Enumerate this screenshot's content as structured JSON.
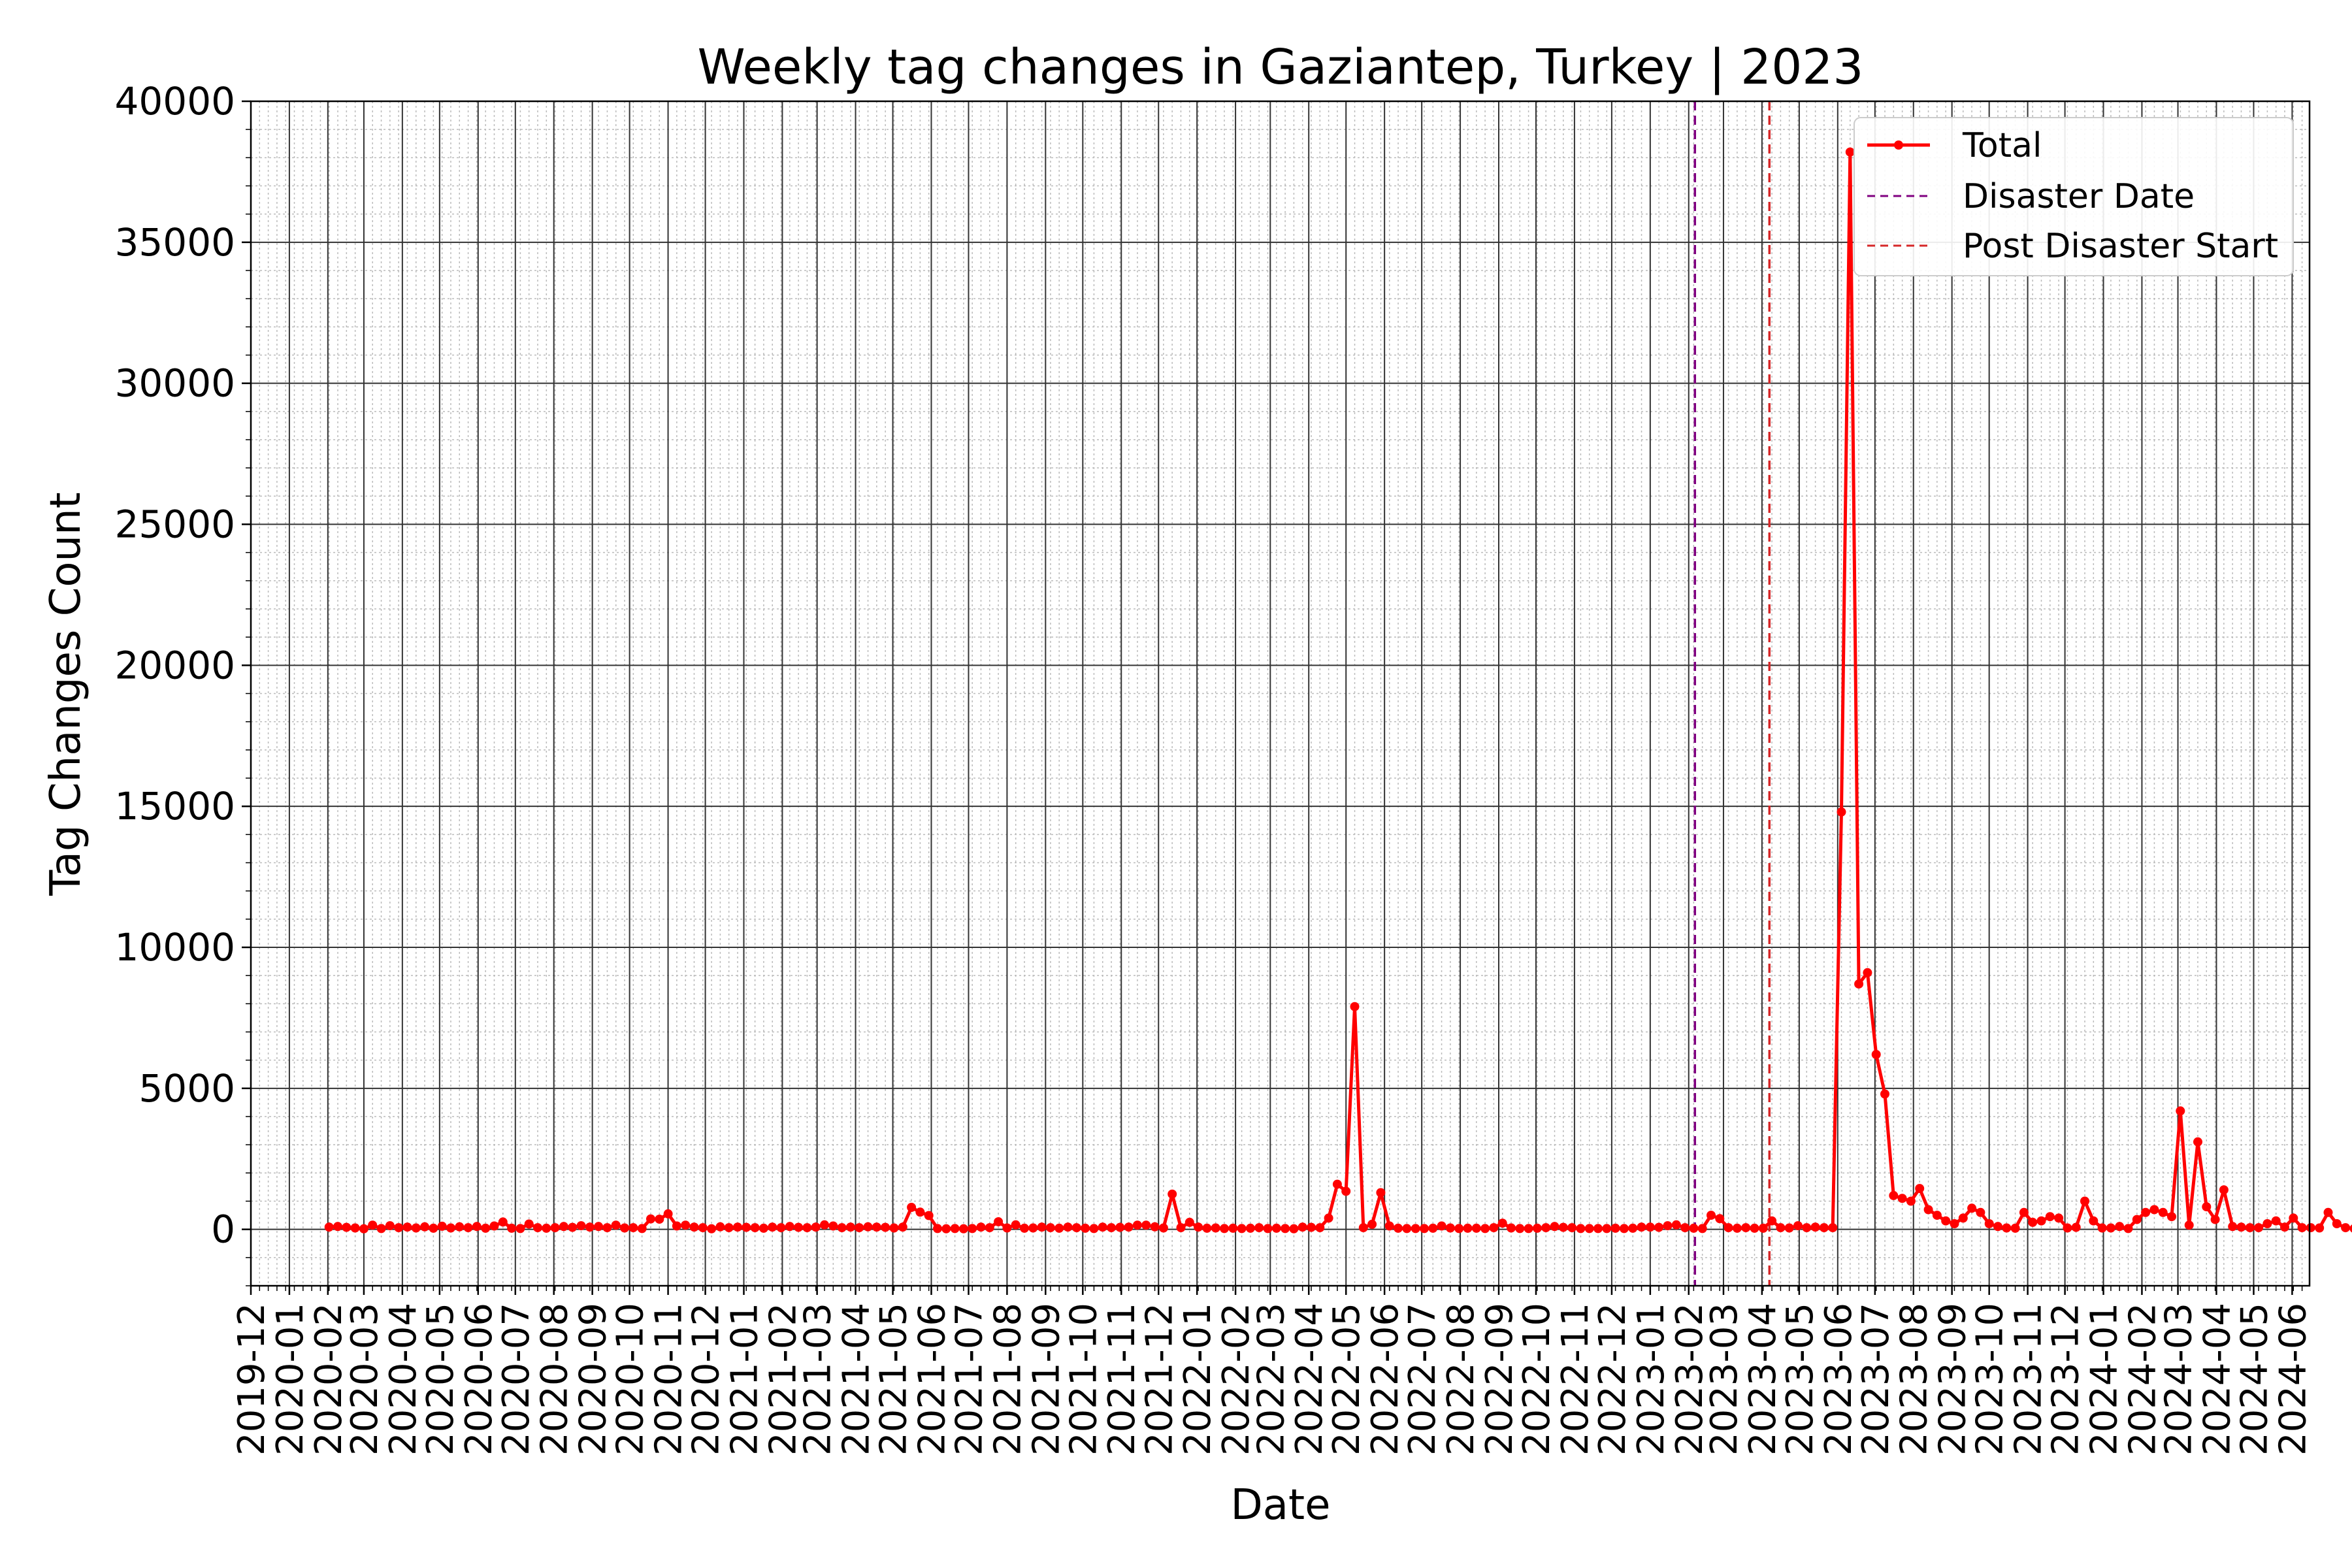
{
  "chart_data": {
    "type": "line",
    "title": "Weekly tag changes in Gaziantep, Turkey | 2023",
    "xlabel": "Date",
    "ylabel": "Tag Changes Count",
    "ylim": [
      -2000,
      40000
    ],
    "yticks": [
      0,
      5000,
      10000,
      15000,
      20000,
      25000,
      30000,
      35000,
      40000
    ],
    "xlim": [
      "2019-12-01",
      "2024-06-15"
    ],
    "xtick_labels": [
      "2019-12",
      "2020-01",
      "2020-02",
      "2020-03",
      "2020-04",
      "2020-05",
      "2020-06",
      "2020-07",
      "2020-08",
      "2020-09",
      "2020-10",
      "2020-11",
      "2020-12",
      "2021-01",
      "2021-02",
      "2021-03",
      "2021-04",
      "2021-05",
      "2021-06",
      "2021-07",
      "2021-08",
      "2021-09",
      "2021-10",
      "2021-11",
      "2021-12",
      "2022-01",
      "2022-02",
      "2022-03",
      "2022-04",
      "2022-05",
      "2022-06",
      "2022-07",
      "2022-08",
      "2022-09",
      "2022-10",
      "2022-11",
      "2022-12",
      "2023-01",
      "2023-02",
      "2023-03",
      "2023-04",
      "2023-05",
      "2023-06",
      "2023-07",
      "2023-08",
      "2023-09",
      "2023-10",
      "2023-11",
      "2023-12",
      "2024-01",
      "2024-02",
      "2024-03",
      "2024-04",
      "2024-05",
      "2024-06"
    ],
    "grid": true,
    "legend": "top-right",
    "series": [
      {
        "name": "Total",
        "color": "#ff0000",
        "start_date": "2020-02-02",
        "interval_days": 7,
        "values": [
          80,
          100,
          70,
          50,
          20,
          150,
          30,
          130,
          60,
          80,
          50,
          90,
          40,
          110,
          50,
          90,
          60,
          100,
          40,
          120,
          260,
          40,
          30,
          190,
          60,
          40,
          60,
          100,
          70,
          130,
          80,
          100,
          60,
          150,
          50,
          60,
          30,
          370,
          360,
          550,
          120,
          150,
          80,
          60,
          20,
          90,
          60,
          80,
          70,
          60,
          40,
          80,
          60,
          100,
          70,
          60,
          80,
          160,
          120,
          60,
          80,
          60,
          90,
          80,
          70,
          50,
          80,
          780,
          610,
          490,
          30,
          20,
          30,
          20,
          30,
          80,
          60,
          270,
          50,
          160,
          40,
          50,
          80,
          60,
          40,
          80,
          60,
          40,
          30,
          80,
          60,
          70,
          80,
          150,
          150,
          90,
          50,
          1250,
          60,
          250,
          80,
          40,
          50,
          30,
          40,
          30,
          40,
          60,
          30,
          40,
          30,
          20,
          80,
          70,
          60,
          400,
          1600,
          1350,
          7900,
          60,
          180,
          1300,
          120,
          40,
          30,
          30,
          30,
          40,
          120,
          50,
          30,
          40,
          40,
          30,
          60,
          220,
          50,
          30,
          30,
          40,
          60,
          100,
          70,
          60,
          30,
          30,
          30,
          30,
          40,
          30,
          40,
          80,
          80,
          70,
          130,
          160,
          60,
          40,
          30,
          500,
          380,
          60,
          40,
          60,
          40,
          40,
          300,
          60,
          50,
          130,
          60,
          80,
          60,
          60,
          14800,
          38200,
          8700,
          9100,
          6200,
          4800,
          1200,
          1100,
          1000,
          1450,
          700,
          500,
          300,
          200,
          400,
          750,
          600,
          200,
          100,
          50,
          40,
          600,
          250,
          300,
          450,
          400,
          50,
          70,
          1000,
          300,
          50,
          50,
          100,
          30,
          350,
          600,
          700,
          600,
          450,
          4200,
          150,
          3100,
          800,
          350,
          1400,
          100,
          80,
          60,
          60,
          200,
          300,
          80,
          400,
          60,
          60,
          50,
          600,
          200,
          60,
          30,
          80,
          40,
          80
        ]
      }
    ],
    "vlines": [
      {
        "name": "Disaster Date",
        "date": "2023-02-06",
        "color": "#800080"
      },
      {
        "name": "Post Disaster Start",
        "date": "2023-04-07",
        "color": "#d62728"
      }
    ]
  }
}
